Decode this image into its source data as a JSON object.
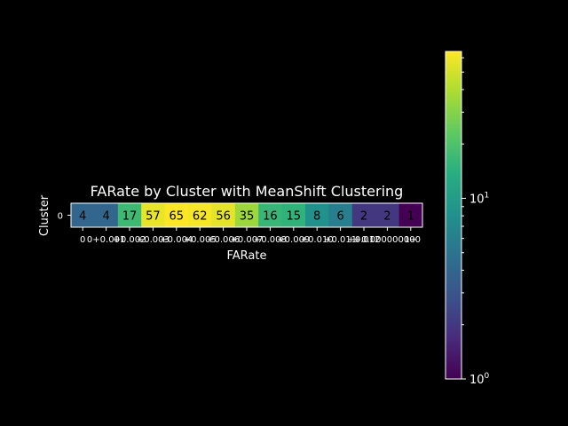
{
  "chart_data": {
    "type": "heatmap",
    "title": "FARate by Cluster with MeanShift Clustering",
    "xlabel": "FARate",
    "ylabel": "Cluster",
    "rows": [
      "0"
    ],
    "x_tick_labels": [
      "0",
      "0+0.001",
      "+0.002",
      "+0.003",
      "+0.004",
      "+0.005",
      "+0.006",
      "+0.007",
      "+0.008",
      "+0.009",
      "+0.010",
      "+0.011",
      "+0.012",
      "+0.000000000",
      "1+"
    ],
    "values": [
      [
        4,
        4,
        17,
        57,
        65,
        62,
        56,
        35,
        16,
        15,
        8,
        6,
        2,
        2,
        1
      ]
    ],
    "colorbar": {
      "scale": "log",
      "range": [
        1,
        65
      ],
      "colormap": "viridis",
      "tick_labels": [
        {
          "value": 1,
          "base": "10",
          "exp": "0"
        },
        {
          "value": 10,
          "base": "10",
          "exp": "1"
        }
      ]
    },
    "grid": false
  }
}
